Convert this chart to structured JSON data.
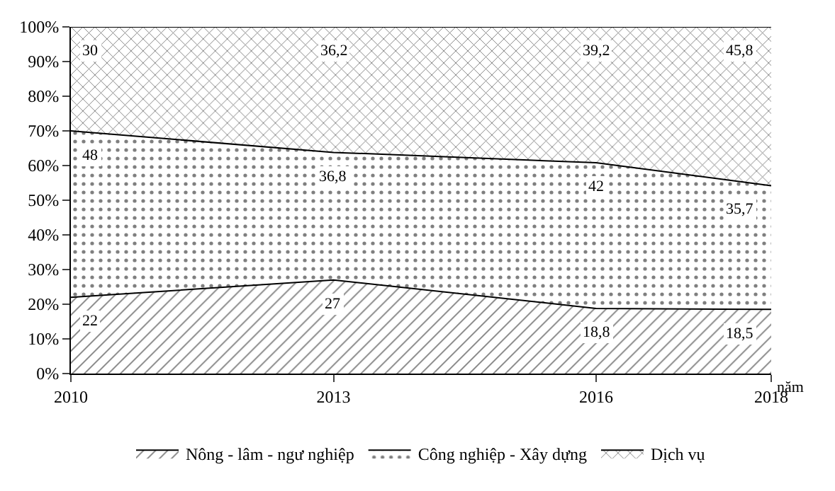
{
  "chart_data": {
    "type": "area",
    "stacked": true,
    "xlabel": "năm",
    "x": [
      2010,
      2013,
      2016,
      2018
    ],
    "xlim": [
      2010,
      2018
    ],
    "xticks": [
      2010,
      2013,
      2016,
      2018
    ],
    "ylim": [
      0,
      100
    ],
    "yticks": [
      {
        "value": 0,
        "label": "0%"
      },
      {
        "value": 10,
        "label": "10%"
      },
      {
        "value": 20,
        "label": "20%"
      },
      {
        "value": 30,
        "label": "30%"
      },
      {
        "value": 40,
        "label": "40%"
      },
      {
        "value": 50,
        "label": "50%"
      },
      {
        "value": 60,
        "label": "60%"
      },
      {
        "value": 70,
        "label": "70%"
      },
      {
        "value": 80,
        "label": "80%"
      },
      {
        "value": 90,
        "label": "90%"
      },
      {
        "value": 100,
        "label": "100%"
      }
    ],
    "legend": "bottom",
    "series": [
      {
        "name": "Nông - lâm - ngư nghiệp",
        "color": "#000000",
        "values": [
          22,
          27,
          18.8,
          18.5
        ],
        "value_labels": [
          "22",
          "27",
          "18,8",
          "18,5"
        ]
      },
      {
        "name": "Công nghiệp - Xây dựng",
        "color": "#000000",
        "values": [
          48,
          36.8,
          42,
          35.7
        ],
        "value_labels": [
          "48",
          "36,8",
          "42",
          "35,7"
        ]
      },
      {
        "name": "Dịch vụ",
        "color": "#000000",
        "values": [
          30,
          36.2,
          39.2,
          45.8
        ],
        "value_labels": [
          "30",
          "36,2",
          "39,2",
          "45,8"
        ]
      }
    ]
  }
}
